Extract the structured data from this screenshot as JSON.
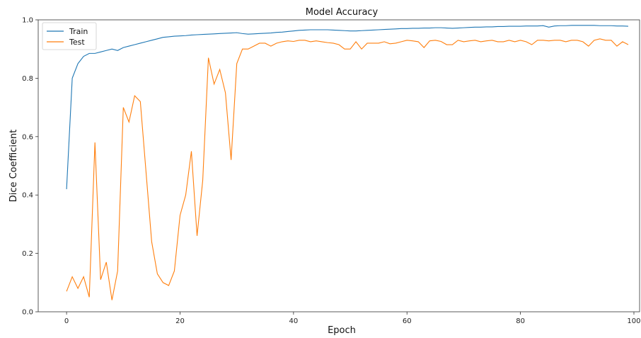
{
  "chart_data": {
    "type": "line",
    "title": "Model Accuracy",
    "xlabel": "Epoch",
    "ylabel": "Dice Coefficient",
    "xlim": [
      -5,
      101
    ],
    "ylim": [
      0.0,
      1.0
    ],
    "xticks": [
      0,
      20,
      40,
      60,
      80,
      100
    ],
    "yticks": [
      0.0,
      0.2,
      0.4,
      0.6,
      0.8,
      1.0
    ],
    "xtick_labels": [
      "0",
      "20",
      "40",
      "60",
      "80",
      "100"
    ],
    "ytick_labels": [
      "0.0",
      "0.2",
      "0.4",
      "0.6",
      "0.8",
      "1.0"
    ],
    "grid": false,
    "legend": "top-left",
    "series": [
      {
        "name": "Train",
        "color": "#1f77b4",
        "x": [
          0,
          1,
          2,
          3,
          4,
          5,
          6,
          7,
          8,
          9,
          10,
          11,
          12,
          13,
          14,
          15,
          16,
          17,
          18,
          19,
          20,
          21,
          22,
          23,
          24,
          25,
          26,
          27,
          28,
          29,
          30,
          31,
          32,
          33,
          34,
          35,
          36,
          37,
          38,
          39,
          40,
          41,
          42,
          43,
          44,
          45,
          46,
          47,
          48,
          49,
          50,
          51,
          52,
          53,
          54,
          55,
          56,
          57,
          58,
          59,
          60,
          61,
          62,
          63,
          64,
          65,
          66,
          67,
          68,
          69,
          70,
          71,
          72,
          73,
          74,
          75,
          76,
          77,
          78,
          79,
          80,
          81,
          82,
          83,
          84,
          85,
          86,
          87,
          88,
          89,
          90,
          91,
          92,
          93,
          94,
          95,
          96,
          97,
          98,
          99
        ],
        "values": [
          0.42,
          0.8,
          0.85,
          0.875,
          0.885,
          0.885,
          0.89,
          0.895,
          0.9,
          0.895,
          0.905,
          0.91,
          0.915,
          0.92,
          0.925,
          0.93,
          0.935,
          0.94,
          0.942,
          0.944,
          0.945,
          0.946,
          0.948,
          0.949,
          0.95,
          0.951,
          0.952,
          0.953,
          0.954,
          0.955,
          0.956,
          0.953,
          0.951,
          0.952,
          0.953,
          0.954,
          0.955,
          0.957,
          0.958,
          0.96,
          0.962,
          0.964,
          0.965,
          0.966,
          0.966,
          0.966,
          0.966,
          0.965,
          0.964,
          0.963,
          0.962,
          0.962,
          0.963,
          0.964,
          0.965,
          0.966,
          0.967,
          0.968,
          0.969,
          0.97,
          0.97,
          0.971,
          0.971,
          0.972,
          0.972,
          0.973,
          0.973,
          0.972,
          0.971,
          0.972,
          0.973,
          0.974,
          0.975,
          0.975,
          0.976,
          0.976,
          0.977,
          0.977,
          0.978,
          0.978,
          0.978,
          0.979,
          0.979,
          0.979,
          0.98,
          0.975,
          0.979,
          0.98,
          0.98,
          0.981,
          0.981,
          0.981,
          0.981,
          0.981,
          0.98,
          0.98,
          0.98,
          0.979,
          0.979,
          0.978
        ]
      },
      {
        "name": "Test",
        "color": "#ff7f0e",
        "x": [
          0,
          1,
          2,
          3,
          4,
          5,
          6,
          7,
          8,
          9,
          10,
          11,
          12,
          13,
          14,
          15,
          16,
          17,
          18,
          19,
          20,
          21,
          22,
          23,
          24,
          25,
          26,
          27,
          28,
          29,
          30,
          31,
          32,
          33,
          34,
          35,
          36,
          37,
          38,
          39,
          40,
          41,
          42,
          43,
          44,
          45,
          46,
          47,
          48,
          49,
          50,
          51,
          52,
          53,
          54,
          55,
          56,
          57,
          58,
          59,
          60,
          61,
          62,
          63,
          64,
          65,
          66,
          67,
          68,
          69,
          70,
          71,
          72,
          73,
          74,
          75,
          76,
          77,
          78,
          79,
          80,
          81,
          82,
          83,
          84,
          85,
          86,
          87,
          88,
          89,
          90,
          91,
          92,
          93,
          94,
          95,
          96,
          97,
          98,
          99
        ],
        "values": [
          0.07,
          0.12,
          0.08,
          0.12,
          0.05,
          0.58,
          0.11,
          0.17,
          0.04,
          0.14,
          0.7,
          0.65,
          0.74,
          0.72,
          0.48,
          0.24,
          0.13,
          0.1,
          0.09,
          0.14,
          0.33,
          0.4,
          0.55,
          0.26,
          0.45,
          0.87,
          0.78,
          0.83,
          0.75,
          0.52,
          0.85,
          0.9,
          0.9,
          0.91,
          0.92,
          0.92,
          0.91,
          0.92,
          0.925,
          0.928,
          0.926,
          0.93,
          0.93,
          0.925,
          0.928,
          0.925,
          0.922,
          0.92,
          0.915,
          0.9,
          0.9,
          0.925,
          0.9,
          0.92,
          0.92,
          0.92,
          0.925,
          0.918,
          0.92,
          0.925,
          0.93,
          0.928,
          0.925,
          0.905,
          0.928,
          0.93,
          0.926,
          0.915,
          0.915,
          0.93,
          0.925,
          0.928,
          0.93,
          0.925,
          0.928,
          0.93,
          0.925,
          0.925,
          0.93,
          0.925,
          0.93,
          0.925,
          0.915,
          0.93,
          0.93,
          0.928,
          0.93,
          0.93,
          0.925,
          0.93,
          0.93,
          0.925,
          0.91,
          0.93,
          0.935,
          0.93,
          0.93,
          0.91,
          0.925,
          0.915
        ]
      }
    ]
  }
}
